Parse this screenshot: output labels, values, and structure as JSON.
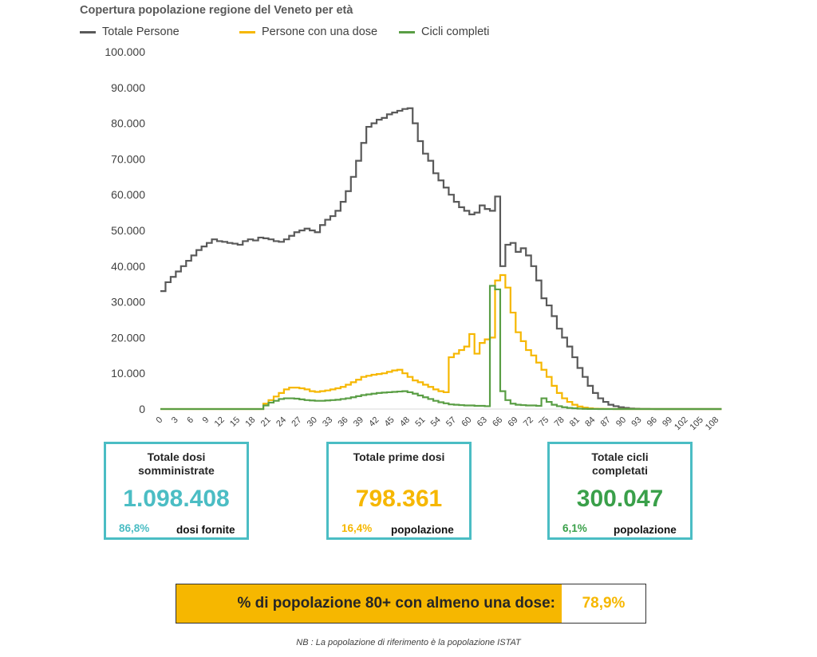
{
  "chart_data": {
    "type": "line",
    "step": true,
    "title": "Copertura popolazione regione del Veneto per età",
    "xlabel": "",
    "ylabel": "",
    "ylim": [
      0,
      100000
    ],
    "y_ticks": [
      "0",
      "10.000",
      "20.000",
      "30.000",
      "40.000",
      "50.000",
      "60.000",
      "70.000",
      "80.000",
      "90.000",
      "100.000"
    ],
    "x_ticks": [
      0,
      3,
      6,
      9,
      12,
      15,
      18,
      21,
      24,
      27,
      30,
      33,
      36,
      39,
      42,
      45,
      48,
      51,
      54,
      57,
      60,
      63,
      66,
      69,
      72,
      75,
      78,
      81,
      84,
      87,
      90,
      93,
      96,
      99,
      102,
      105,
      108
    ],
    "x": [
      0,
      1,
      2,
      3,
      4,
      5,
      6,
      7,
      8,
      9,
      10,
      11,
      12,
      13,
      14,
      15,
      16,
      17,
      18,
      19,
      20,
      21,
      22,
      23,
      24,
      25,
      26,
      27,
      28,
      29,
      30,
      31,
      32,
      33,
      34,
      35,
      36,
      37,
      38,
      39,
      40,
      41,
      42,
      43,
      44,
      45,
      46,
      47,
      48,
      49,
      50,
      51,
      52,
      53,
      54,
      55,
      56,
      57,
      58,
      59,
      60,
      61,
      62,
      63,
      64,
      65,
      66,
      67,
      68,
      69,
      70,
      71,
      72,
      73,
      74,
      75,
      76,
      77,
      78,
      79,
      80,
      81,
      82,
      83,
      84,
      85,
      86,
      87,
      88,
      89,
      90,
      91,
      92,
      93,
      94,
      95,
      96,
      97,
      98,
      99,
      100,
      101,
      102,
      103,
      104,
      105,
      106,
      107,
      108
    ],
    "grid": false,
    "legend_position": "top",
    "series": [
      {
        "name": "Totale Persone",
        "color": "#595959",
        "values": [
          33000,
          35500,
          37000,
          38500,
          40000,
          41500,
          43000,
          44500,
          45500,
          46500,
          47500,
          47000,
          46800,
          46500,
          46300,
          46000,
          47000,
          47500,
          47200,
          48000,
          47800,
          47500,
          47000,
          46800,
          47500,
          48500,
          49500,
          50000,
          50500,
          50000,
          49500,
          51500,
          53000,
          54000,
          55500,
          58000,
          61000,
          65000,
          69500,
          74500,
          79000,
          80000,
          81000,
          81500,
          82500,
          83000,
          83500,
          84000,
          84200,
          80000,
          75000,
          71500,
          69500,
          66000,
          64000,
          62000,
          60000,
          58000,
          56500,
          55500,
          54500,
          55000,
          57000,
          56000,
          55500,
          59500,
          40000,
          46000,
          46500,
          44000,
          45000,
          43000,
          40000,
          36000,
          31000,
          29000,
          26000,
          22500,
          20000,
          17500,
          14500,
          11500,
          9000,
          6500,
          4500,
          3000,
          2000,
          1200,
          800,
          500,
          300,
          150,
          80,
          40,
          20,
          10,
          0,
          0,
          0,
          0,
          0,
          0,
          0,
          0,
          0,
          0,
          0,
          0,
          0
        ]
      },
      {
        "name": "Persone con una dose",
        "color": "#f6b700",
        "values": [
          0,
          0,
          0,
          0,
          0,
          0,
          0,
          0,
          0,
          0,
          0,
          0,
          0,
          0,
          0,
          0,
          0,
          0,
          0,
          0,
          1500,
          2500,
          3500,
          4500,
          5500,
          6000,
          6000,
          5800,
          5500,
          5000,
          4800,
          5000,
          5200,
          5500,
          5800,
          6200,
          6800,
          7500,
          8200,
          9000,
          9300,
          9600,
          9800,
          10000,
          10400,
          10800,
          11000,
          10000,
          9000,
          8000,
          7500,
          6800,
          6200,
          5500,
          5000,
          4700,
          14500,
          15500,
          16500,
          17500,
          21000,
          15500,
          18500,
          19500,
          20000,
          36000,
          37500,
          34000,
          27000,
          21500,
          19000,
          16500,
          15000,
          13000,
          11000,
          9000,
          6500,
          4500,
          3000,
          2000,
          1200,
          700,
          400,
          200,
          100,
          50,
          20,
          10,
          0,
          0,
          0,
          0,
          0,
          0,
          0,
          0,
          0,
          0,
          0,
          0,
          0,
          0,
          0,
          0,
          0,
          0,
          0,
          0,
          0
        ]
      },
      {
        "name": "Cicli completi",
        "color": "#5a9e45",
        "values": [
          0,
          0,
          0,
          0,
          0,
          0,
          0,
          0,
          0,
          0,
          0,
          0,
          0,
          0,
          0,
          0,
          0,
          0,
          0,
          0,
          1000,
          1800,
          2300,
          2800,
          3000,
          3000,
          2900,
          2700,
          2500,
          2400,
          2300,
          2300,
          2400,
          2500,
          2600,
          2800,
          3000,
          3300,
          3600,
          3900,
          4100,
          4300,
          4500,
          4600,
          4700,
          4800,
          4900,
          5000,
          4700,
          4300,
          3800,
          3300,
          2800,
          2300,
          1900,
          1600,
          1300,
          1200,
          1100,
          1000,
          1000,
          900,
          900,
          800,
          34500,
          33500,
          5000,
          2500,
          1500,
          1200,
          1100,
          1000,
          1000,
          900,
          3000,
          2000,
          1200,
          800,
          500,
          300,
          200,
          100,
          50,
          20,
          10,
          0,
          0,
          0,
          0,
          0,
          0,
          0,
          0,
          0,
          0,
          0,
          0,
          0,
          0,
          0,
          0,
          0,
          0,
          0,
          0,
          0,
          0,
          0,
          0
        ]
      }
    ]
  },
  "kpis": [
    {
      "title_line1": "Totale dosi",
      "title_line2": "somministrate",
      "value": "1.098.408",
      "pct": "86,8%",
      "note": "dosi fornite",
      "color": "#4bbdc4"
    },
    {
      "title_line1": "Totale prime dosi",
      "title_line2": "",
      "value": "798.361",
      "pct": "16,4%",
      "note": "popolazione",
      "color": "#f6b700"
    },
    {
      "title_line1": "Totale cicli",
      "title_line2": "completati",
      "value": "300.047",
      "pct": "6,1%",
      "note": "popolazione",
      "color": "#3aa04a"
    }
  ],
  "banner": {
    "label": "% di popolazione 80+ con almeno una dose:",
    "value": "78,9%"
  },
  "footnote": "NB : La popolazione di riferimento è la popolazione ISTAT"
}
